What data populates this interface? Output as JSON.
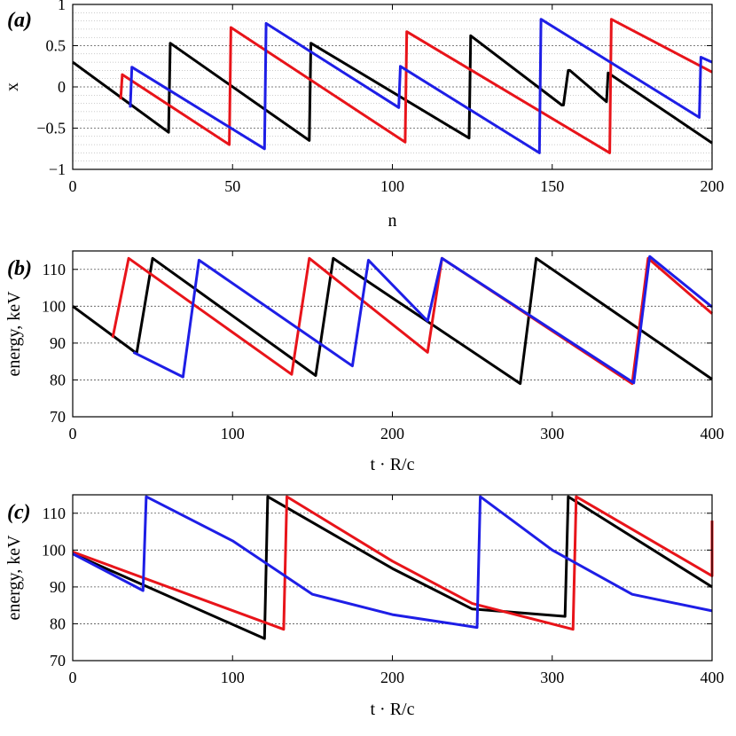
{
  "chart_data": [
    {
      "panel_label": "(a)",
      "type": "line",
      "xlabel": "n",
      "ylabel": "x",
      "xlim": [
        0,
        200
      ],
      "ylim": [
        -1,
        1
      ],
      "xticks": [
        0,
        50,
        100,
        150,
        200
      ],
      "yticks": [
        -1,
        -0.5,
        0,
        0.5,
        1
      ],
      "ytick_labels": [
        "−1",
        "−0.5",
        "0",
        "0.5",
        "1"
      ],
      "grid": "horizontal dotted",
      "colors": {
        "black": "#000000",
        "red": "#e8141a",
        "blue": "#1e1ee6"
      },
      "series": [
        {
          "color": "black",
          "x": [
            0,
            30,
            30.5,
            74,
            74.5,
            124,
            124.5,
            153,
            153.5,
            155,
            155.5,
            167,
            167.5,
            200
          ],
          "y": [
            0.3,
            -0.55,
            0.53,
            -0.65,
            0.53,
            -0.62,
            0.62,
            -0.22,
            -0.22,
            0.2,
            0.2,
            -0.18,
            0.17,
            -0.68
          ]
        },
        {
          "color": "red",
          "x": [
            15,
            15.5,
            49,
            49.5,
            104,
            104.5,
            168,
            168.5,
            200
          ],
          "y": [
            -0.15,
            0.15,
            -0.7,
            0.72,
            -0.67,
            0.67,
            -0.8,
            0.82,
            0.18
          ]
        },
        {
          "color": "blue",
          "x": [
            18,
            18.5,
            60,
            60.5,
            102,
            102.5,
            146,
            146.5,
            196,
            196.5,
            200
          ],
          "y": [
            -0.25,
            0.24,
            -0.75,
            0.77,
            -0.25,
            0.25,
            -0.8,
            0.82,
            -0.37,
            0.36,
            0.3
          ]
        }
      ]
    },
    {
      "panel_label": "(b)",
      "type": "line",
      "xlabel": "t · R/c",
      "ylabel": "energy, keV",
      "xlim": [
        0,
        400
      ],
      "ylim": [
        70,
        115
      ],
      "xticks": [
        0,
        100,
        200,
        300,
        400
      ],
      "yticks": [
        70,
        80,
        90,
        100,
        110
      ],
      "grid": "horizontal dotted",
      "colors": {
        "black": "#000000",
        "red": "#e8141a",
        "blue": "#1e1ee6"
      },
      "series": [
        {
          "color": "black",
          "x": [
            0,
            40,
            50,
            152,
            163,
            280,
            290,
            400
          ],
          "y": [
            100,
            87.2,
            113,
            81.2,
            113,
            79,
            113,
            80.2
          ]
        },
        {
          "color": "red",
          "x": [
            25,
            35,
            137,
            148,
            222,
            231,
            350,
            360,
            400
          ],
          "y": [
            91.5,
            113,
            81.5,
            113,
            87.5,
            113,
            79,
            113,
            98
          ]
        },
        {
          "color": "blue",
          "x": [
            38,
            69,
            79,
            175,
            185,
            222,
            231,
            351,
            361,
            400
          ],
          "y": [
            87.5,
            80.8,
            112.5,
            83.8,
            112.5,
            96,
            113,
            79.2,
            113.5,
            99.8
          ]
        }
      ]
    },
    {
      "panel_label": "(c)",
      "type": "line",
      "xlabel": "t · R/c",
      "ylabel": "energy, keV",
      "xlim": [
        0,
        400
      ],
      "ylim": [
        70,
        115
      ],
      "xticks": [
        0,
        100,
        200,
        300,
        400
      ],
      "yticks": [
        70,
        80,
        90,
        100,
        110
      ],
      "grid": "horizontal dotted",
      "colors": {
        "black": "#000000",
        "red": "#e8141a",
        "blue": "#1e1ee6"
      },
      "series": [
        {
          "color": "black",
          "x": [
            0,
            120,
            122,
            200,
            250,
            308,
            310,
            400
          ],
          "y": [
            99,
            76,
            114.5,
            95,
            84,
            82,
            114.5,
            90
          ]
        },
        {
          "color": "red",
          "x": [
            0,
            132,
            134,
            200,
            250,
            313,
            315,
            400,
            400
          ],
          "y": [
            99.5,
            78.5,
            114.5,
            97,
            85.5,
            78.5,
            114.5,
            93,
            108
          ]
        },
        {
          "color": "blue",
          "x": [
            0,
            44,
            46,
            100,
            150,
            200,
            253,
            255,
            300,
            350,
            400
          ],
          "y": [
            99,
            89,
            114.5,
            102.5,
            88,
            82.5,
            79,
            114.5,
            100,
            88,
            83.5
          ]
        }
      ]
    }
  ]
}
